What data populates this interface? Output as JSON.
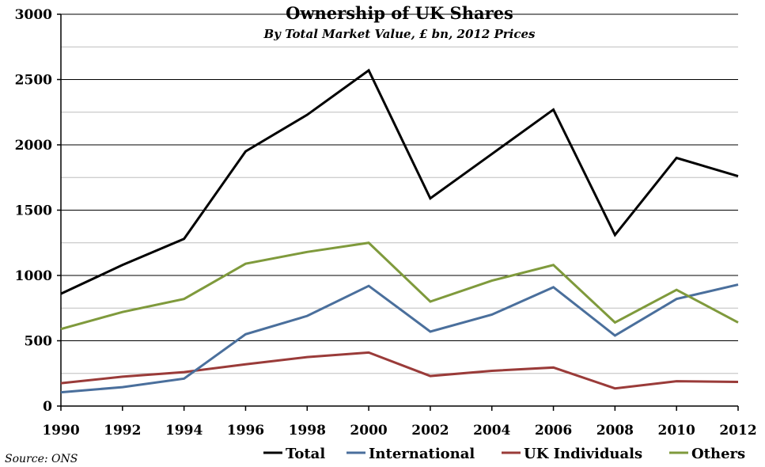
{
  "chart_data": {
    "type": "line",
    "title": "Ownership of UK Shares",
    "subtitle": "By Total Market Value, £ bn, 2012 Prices",
    "source": "Source: ONS",
    "x": [
      1990,
      1992,
      1994,
      1996,
      1998,
      2000,
      2002,
      2004,
      2006,
      2008,
      2010,
      2012
    ],
    "xticks": [
      "1990",
      "1992",
      "1994",
      "1996",
      "1998",
      "2000",
      "2002",
      "2004",
      "2006",
      "2008",
      "2010",
      "2012"
    ],
    "ylim": [
      0,
      3000
    ],
    "yticks": [
      0,
      500,
      1000,
      1500,
      2000,
      2500,
      3000
    ],
    "ytick_labels": [
      "0",
      "500",
      "1000",
      "1500",
      "2000",
      "2500",
      "3000"
    ],
    "grid": true,
    "legend": "bottom",
    "series": [
      {
        "name": "Total",
        "color": "#000000",
        "values": [
          860,
          1080,
          1280,
          1950,
          2230,
          2570,
          1590,
          1930,
          2270,
          1310,
          1900,
          1760
        ]
      },
      {
        "name": "International",
        "color": "#4a6f9c",
        "values": [
          105,
          145,
          210,
          550,
          690,
          920,
          570,
          700,
          910,
          540,
          820,
          930
        ]
      },
      {
        "name": "UK Individuals",
        "color": "#9a3b39",
        "values": [
          175,
          225,
          260,
          320,
          375,
          410,
          230,
          270,
          295,
          135,
          190,
          185
        ]
      },
      {
        "name": "Others",
        "color": "#7f9a3c",
        "values": [
          590,
          720,
          820,
          1090,
          1180,
          1250,
          800,
          960,
          1080,
          640,
          890,
          640
        ]
      }
    ]
  }
}
